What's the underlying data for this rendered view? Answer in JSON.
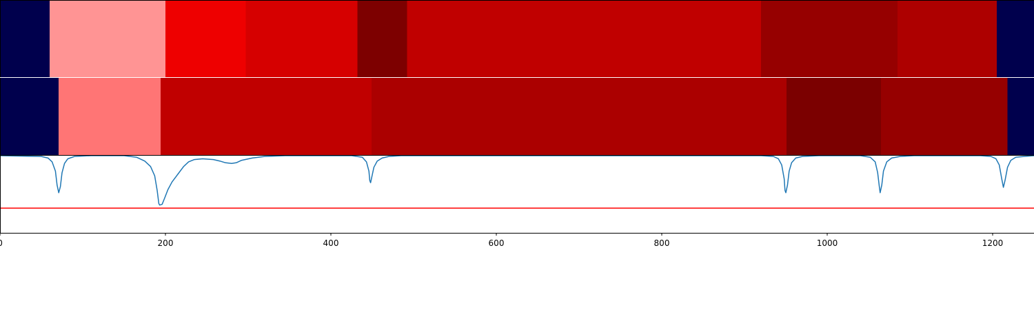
{
  "chart_data": {
    "type": "heatmap",
    "title": "",
    "xlabel": "",
    "ylabel": "",
    "xlim": [
      0,
      1250
    ],
    "ylim": [
      -1,
      0
    ],
    "grid": false,
    "segment_rows": [
      {
        "name": "row-1",
        "segments": [
          {
            "start": 0,
            "end": 60,
            "color": "#00004d"
          },
          {
            "start": 60,
            "end": 200,
            "color": "#ff9494"
          },
          {
            "start": 200,
            "end": 297,
            "color": "#ee0000"
          },
          {
            "start": 297,
            "end": 432,
            "color": "#d60000"
          },
          {
            "start": 432,
            "end": 492,
            "color": "#7d0000"
          },
          {
            "start": 492,
            "end": 920,
            "color": "#c00000"
          },
          {
            "start": 920,
            "end": 1085,
            "color": "#960000"
          },
          {
            "start": 1085,
            "end": 1205,
            "color": "#ad0000"
          },
          {
            "start": 1205,
            "end": 1250,
            "color": "#00004d"
          }
        ]
      },
      {
        "name": "row-2",
        "segments": [
          {
            "start": 0,
            "end": 71,
            "color": "#00004d"
          },
          {
            "start": 71,
            "end": 194,
            "color": "#ff7575"
          },
          {
            "start": 194,
            "end": 449,
            "color": "#c00000"
          },
          {
            "start": 449,
            "end": 951,
            "color": "#ab0000"
          },
          {
            "start": 951,
            "end": 1065,
            "color": "#7b0000"
          },
          {
            "start": 1065,
            "end": 1218,
            "color": "#960000"
          },
          {
            "start": 1218,
            "end": 1250,
            "color": "#00004d"
          }
        ]
      }
    ],
    "signal": {
      "name": "signal",
      "color": "#1f77b4",
      "points": [
        [
          0,
          0
        ],
        [
          50,
          -0.01
        ],
        [
          58,
          -0.03
        ],
        [
          63,
          -0.08
        ],
        [
          67,
          -0.2
        ],
        [
          69,
          -0.38
        ],
        [
          71,
          -0.48
        ],
        [
          73,
          -0.4
        ],
        [
          75,
          -0.22
        ],
        [
          78,
          -0.1
        ],
        [
          82,
          -0.04
        ],
        [
          90,
          -0.01
        ],
        [
          110,
          0
        ],
        [
          150,
          0
        ],
        [
          165,
          -0.02
        ],
        [
          175,
          -0.07
        ],
        [
          182,
          -0.14
        ],
        [
          187,
          -0.26
        ],
        [
          190,
          -0.45
        ],
        [
          192,
          -0.62
        ],
        [
          193,
          -0.64
        ],
        [
          196,
          -0.63
        ],
        [
          199,
          -0.55
        ],
        [
          203,
          -0.44
        ],
        [
          208,
          -0.34
        ],
        [
          215,
          -0.24
        ],
        [
          222,
          -0.14
        ],
        [
          228,
          -0.08
        ],
        [
          235,
          -0.05
        ],
        [
          245,
          -0.04
        ],
        [
          258,
          -0.05
        ],
        [
          266,
          -0.07
        ],
        [
          272,
          -0.09
        ],
        [
          280,
          -0.1
        ],
        [
          286,
          -0.09
        ],
        [
          292,
          -0.06
        ],
        [
          305,
          -0.03
        ],
        [
          320,
          -0.01
        ],
        [
          345,
          0
        ],
        [
          425,
          0
        ],
        [
          438,
          -0.02
        ],
        [
          443,
          -0.08
        ],
        [
          446,
          -0.2
        ],
        [
          447,
          -0.32
        ],
        [
          448,
          -0.35
        ],
        [
          450,
          -0.25
        ],
        [
          452,
          -0.15
        ],
        [
          456,
          -0.07
        ],
        [
          462,
          -0.03
        ],
        [
          470,
          -0.01
        ],
        [
          485,
          0
        ],
        [
          920,
          0
        ],
        [
          935,
          -0.01
        ],
        [
          941,
          -0.04
        ],
        [
          945,
          -0.12
        ],
        [
          948,
          -0.3
        ],
        [
          949,
          -0.45
        ],
        [
          950,
          -0.48
        ],
        [
          952,
          -0.38
        ],
        [
          954,
          -0.2
        ],
        [
          957,
          -0.09
        ],
        [
          962,
          -0.03
        ],
        [
          970,
          -0.01
        ],
        [
          990,
          0
        ],
        [
          1040,
          0
        ],
        [
          1052,
          -0.02
        ],
        [
          1058,
          -0.08
        ],
        [
          1061,
          -0.22
        ],
        [
          1063,
          -0.4
        ],
        [
          1064,
          -0.48
        ],
        [
          1066,
          -0.38
        ],
        [
          1068,
          -0.2
        ],
        [
          1072,
          -0.08
        ],
        [
          1078,
          -0.03
        ],
        [
          1088,
          -0.01
        ],
        [
          1105,
          0
        ],
        [
          1185,
          0
        ],
        [
          1198,
          -0.01
        ],
        [
          1204,
          -0.04
        ],
        [
          1208,
          -0.12
        ],
        [
          1211,
          -0.3
        ],
        [
          1213,
          -0.41
        ],
        [
          1215,
          -0.32
        ],
        [
          1218,
          -0.15
        ],
        [
          1222,
          -0.06
        ],
        [
          1228,
          -0.02
        ],
        [
          1238,
          -0.01
        ],
        [
          1250,
          0
        ]
      ]
    },
    "threshold": {
      "name": "threshold",
      "value": -0.68,
      "color": "#ff0000"
    },
    "x_ticks": [
      {
        "value": 0,
        "label": "0"
      },
      {
        "value": 200,
        "label": "200"
      },
      {
        "value": 400,
        "label": "400"
      },
      {
        "value": 600,
        "label": "600"
      },
      {
        "value": 800,
        "label": "800"
      },
      {
        "value": 1000,
        "label": "1000"
      },
      {
        "value": 1200,
        "label": "1200"
      }
    ]
  }
}
